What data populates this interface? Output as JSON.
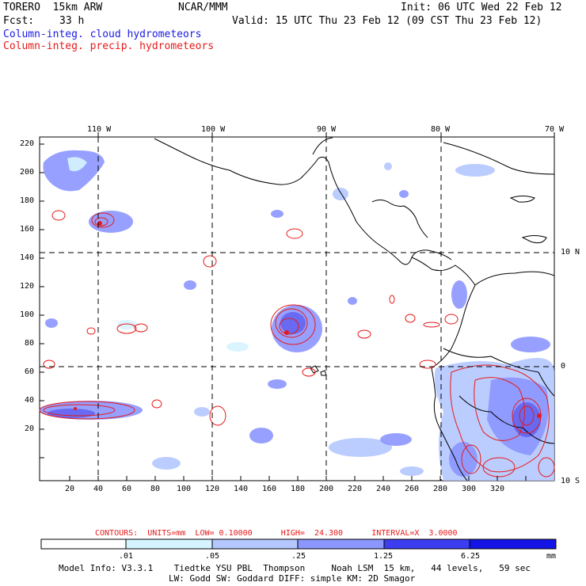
{
  "header": {
    "model": "TORERO  15km ARW",
    "org": "NCAR/MMM",
    "init": "Init: 06 UTC Wed 22 Feb 12",
    "fcst_label": "Fcst:",
    "fcst_value": "33 h",
    "valid": "Valid: 15 UTC Thu 23 Feb 12 (09 CST Thu 23 Feb 12)",
    "field1": "Column-integ. cloud hydrometeors",
    "field2": "Column-integ. precip. hydrometeors"
  },
  "map": {
    "lon_labels": [
      "110 W",
      "100 W",
      "90 W",
      "80 W",
      "70 W"
    ],
    "lat_labels": [
      "10 N",
      "0",
      "10 S"
    ],
    "y_ticks": [
      "220",
      "200",
      "180",
      "160",
      "140",
      "120",
      "100",
      "80",
      "60",
      "40",
      "20"
    ],
    "x_ticks": [
      "20",
      "40",
      "60",
      "80",
      "100",
      "120",
      "140",
      "160",
      "180",
      "200",
      "220",
      "240",
      "260",
      "280",
      "300",
      "320"
    ]
  },
  "contours_line": "CONTOURS:  UNITS=mm  LOW= 0.10000      HIGH=  24.300      INTERVAL=X  3.0000",
  "colorbar": {
    "labels": [
      ".01",
      ".05",
      ".25",
      "1.25",
      "6.25"
    ],
    "unit": "mm",
    "colors": [
      "#ffffff",
      "#d6f4ff",
      "#b4c8ff",
      "#8c96ff",
      "#6464f0",
      "#3c3cf0",
      "#1414e6"
    ]
  },
  "footer": {
    "line1": "Model Info: V3.3.1    Tiedtke YSU PBL  Thompson     Noah LSM  15 km,   44 levels,   59 sec",
    "line2": "LW: Godd SW: Goddard DIFF: simple KM: 2D Smagor"
  },
  "colors": {
    "cloud": "#8c96ff",
    "precip": "#e61a1a",
    "coast": "#000000"
  }
}
